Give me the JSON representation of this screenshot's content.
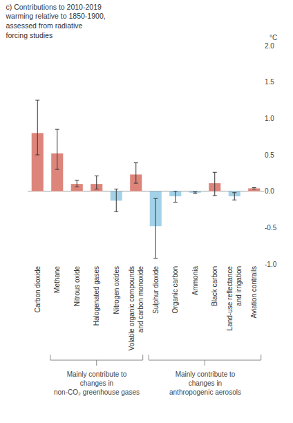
{
  "chart_data": {
    "type": "bar",
    "title": "c) Contributions to 2010-2019\nwarming relative to 1850-1900,\nassessed from radiative\nforcing studies",
    "y_label": "°C",
    "categories": [
      "Carbon dioxide",
      "Methane",
      "Nitrous oxide",
      "Halogenated gases",
      "Nitrogen oxides",
      "Volatile organic compounds\nand carbon monoxide",
      "Sulphur dioxide",
      "Organic carbon",
      "Ammonia",
      "Black carbon",
      "Land-use reflectance\nand irrigation",
      "Aviation contrails"
    ],
    "values": [
      0.8,
      0.52,
      0.1,
      0.1,
      -0.13,
      0.23,
      -0.48,
      -0.07,
      -0.02,
      0.11,
      -0.07,
      0.04
    ],
    "error_plus": [
      0.45,
      0.33,
      0.05,
      0.11,
      0.16,
      0.16,
      0.38,
      0.07,
      0.01,
      0.15,
      0.05,
      0.01
    ],
    "error_minus": [
      0.3,
      0.22,
      0.04,
      0.07,
      0.15,
      0.12,
      0.44,
      0.08,
      0.01,
      0.17,
      0.05,
      0.01
    ],
    "colors": [
      "#dd857b",
      "#dd857b",
      "#dd857b",
      "#dd857b",
      "#a3d2e8",
      "#dd857b",
      "#a3d2e8",
      "#a3d2e8",
      "#a3d2e8",
      "#dd857b",
      "#a3d2e8",
      "#dd857b"
    ],
    "ylim": [
      -1.0,
      2.0
    ],
    "yticks": [
      {
        "value": -1.0,
        "label": "-1.0"
      },
      -0.5,
      {
        "value": 0,
        "label": "0.0"
      },
      0.5,
      {
        "value": 1.0,
        "label": "1.0"
      },
      1.5,
      {
        "value": 2.0,
        "label": "2.0"
      }
    ],
    "grid": false,
    "groups": [
      {
        "label": "Mainly contribute to\nchanges in\nnon-CO₂ greenhouse gases",
        "from": "Methane",
        "to": "Volatile organic compounds\nand carbon monoxide"
      },
      {
        "label": "Mainly contribute to\nchanges in\nanthropogenic aerosols",
        "from": "Sulphur dioxide",
        "to": "Aviation contrails"
      }
    ]
  }
}
